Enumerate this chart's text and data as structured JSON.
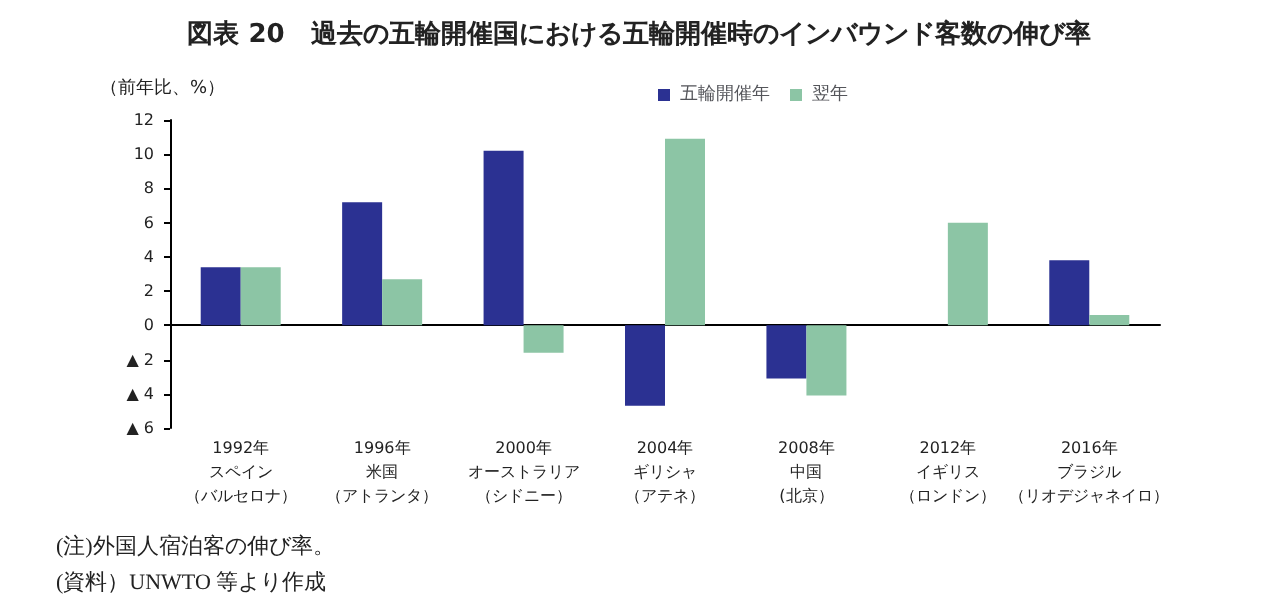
{
  "chart_data": {
    "type": "bar",
    "title": "図表 20　過去の五輪開催国における五輪開催時のインバウンド客数の伸び率",
    "ylabel": "（前年比、%）",
    "categories": [
      "1992年スペイン（バルセロナ）",
      "1996年米国（アトランタ）",
      "2000年オーストラリア（シドニー）",
      "2004年ギリシャ（アテネ）",
      "2008年中国(北京）",
      "2012年イギリス（ロンドン）",
      "2016年ブラジル（リオデジャネイロ）"
    ],
    "series": [
      {
        "name": "五輪開催年",
        "color": "#2b3192",
        "values": [
          3.4,
          7.2,
          10.2,
          -4.7,
          -3.1,
          null,
          3.8
        ]
      },
      {
        "name": "翌年",
        "color": "#8cc5a5",
        "values": [
          3.4,
          2.7,
          -1.6,
          10.9,
          -4.1,
          6.0,
          0.6
        ]
      }
    ],
    "ylim": [
      -6,
      12
    ],
    "yticks": [
      {
        "value": -6,
        "label": "▲ 6"
      },
      {
        "value": -4,
        "label": "▲ 4"
      },
      {
        "value": -2,
        "label": "▲ 2"
      },
      0,
      2,
      4,
      6,
      8,
      10,
      12
    ],
    "legend": "top right",
    "annotations": [
      "(注)外国人宿泊客の伸び率。",
      "(資料）UNWTO 等より作成"
    ]
  }
}
